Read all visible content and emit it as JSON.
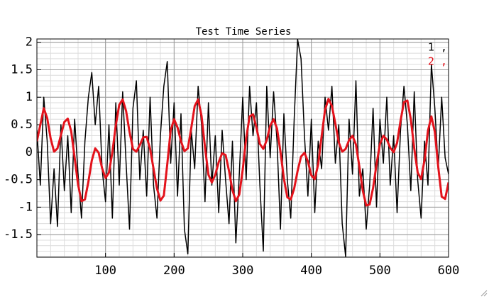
{
  "chart_data": {
    "type": "line",
    "title": "Test Time Series",
    "x": [
      0,
      5,
      10,
      15,
      20,
      25,
      30,
      35,
      40,
      45,
      50,
      55,
      60,
      65,
      70,
      75,
      80,
      85,
      90,
      95,
      100,
      105,
      110,
      115,
      120,
      125,
      130,
      135,
      140,
      145,
      150,
      155,
      160,
      165,
      170,
      175,
      180,
      185,
      190,
      195,
      200,
      205,
      210,
      215,
      220,
      225,
      230,
      235,
      240,
      245,
      250,
      255,
      260,
      265,
      270,
      275,
      280,
      285,
      290,
      295,
      300,
      305,
      310,
      315,
      320,
      325,
      330,
      335,
      340,
      345,
      350,
      355,
      360,
      365,
      370,
      375,
      380,
      385,
      390,
      395,
      400,
      405,
      410,
      415,
      420,
      425,
      430,
      435,
      440,
      445,
      450,
      455,
      460,
      465,
      470,
      475,
      480,
      485,
      490,
      495,
      500,
      505,
      510,
      515,
      520,
      525,
      530,
      535,
      540,
      545,
      550,
      555,
      560,
      565,
      570,
      575,
      580,
      585,
      590,
      595,
      600
    ],
    "series": [
      {
        "name": "1 ,",
        "color": "#000000",
        "values": [
          0.4,
          -0.6,
          1.0,
          0.2,
          -1.3,
          -0.3,
          -1.35,
          0.5,
          -0.7,
          0.3,
          -1.1,
          0.6,
          -0.4,
          -1.2,
          0.2,
          1.0,
          1.45,
          0.5,
          1.2,
          -0.3,
          -0.9,
          0.5,
          -1.2,
          0.9,
          -0.6,
          1.1,
          -0.2,
          -1.4,
          0.8,
          1.3,
          -0.5,
          0.4,
          -0.8,
          1.0,
          -0.6,
          -1.2,
          0.3,
          1.2,
          1.65,
          -0.2,
          0.9,
          -0.8,
          0.7,
          -1.4,
          -1.85,
          0.4,
          -0.3,
          1.2,
          0.5,
          -0.9,
          0.9,
          -0.6,
          0.3,
          -1.1,
          0.4,
          -0.5,
          -1.3,
          0.2,
          -1.65,
          -0.4,
          1.0,
          -0.5,
          1.2,
          0.3,
          0.9,
          -0.6,
          -1.8,
          1.2,
          -0.1,
          1.1,
          0.2,
          -1.4,
          0.7,
          -0.5,
          -1.2,
          0.6,
          2.05,
          1.7,
          0.3,
          -0.8,
          0.6,
          -1.1,
          0.2,
          -0.3,
          1.0,
          0.4,
          1.2,
          -0.2,
          0.5,
          -1.3,
          -1.9,
          0.6,
          -0.4,
          1.3,
          -0.8,
          -0.3,
          -1.4,
          -0.6,
          0.8,
          -1.0,
          0.6,
          -0.2,
          1.0,
          -0.6,
          0.3,
          -1.1,
          0.4,
          1.2,
          0.5,
          -0.7,
          1.1,
          -0.5,
          -1.2,
          0.2,
          -0.6,
          1.6,
          0.8,
          -0.3,
          1.0,
          -0.1,
          -0.4
        ]
      },
      {
        "name": "2 ,",
        "color": "#e3121b",
        "values": [
          0.2,
          0.5,
          0.8,
          0.62,
          0.25,
          0.01,
          0.07,
          0.31,
          0.55,
          0.61,
          0.38,
          -0.1,
          -0.59,
          -0.89,
          -0.86,
          -0.54,
          -0.15,
          0.07,
          -0.01,
          -0.29,
          -0.47,
          -0.37,
          0.0,
          0.49,
          0.86,
          0.96,
          0.75,
          0.37,
          0.06,
          0.01,
          0.13,
          0.27,
          0.28,
          0.06,
          -0.3,
          -0.66,
          -0.88,
          -0.79,
          -0.22,
          0.4,
          0.6,
          0.45,
          0.2,
          0.02,
          0.07,
          0.44,
          0.84,
          0.96,
          0.66,
          0.09,
          -0.41,
          -0.55,
          -0.41,
          -0.18,
          -0.02,
          -0.05,
          -0.34,
          -0.69,
          -0.89,
          -0.77,
          -0.32,
          0.25,
          0.65,
          0.69,
          0.45,
          0.15,
          0.06,
          0.22,
          0.48,
          0.6,
          0.43,
          0.01,
          -0.48,
          -0.82,
          -0.86,
          -0.66,
          -0.34,
          -0.08,
          -0.01,
          -0.17,
          -0.42,
          -0.49,
          -0.22,
          0.29,
          0.77,
          0.97,
          0.84,
          0.52,
          0.18,
          0.01,
          0.06,
          0.22,
          0.3,
          0.14,
          -0.26,
          -0.7,
          -0.97,
          -0.95,
          -0.65,
          -0.22,
          0.15,
          0.3,
          0.23,
          0.08,
          0.0,
          0.17,
          0.57,
          0.91,
          0.94,
          0.6,
          0.07,
          -0.37,
          -0.49,
          -0.14,
          0.39,
          0.65,
          0.37,
          -0.27,
          -0.81,
          -0.85,
          -0.55
        ]
      }
    ],
    "xlim": [
      0,
      600
    ],
    "xticks": [
      100,
      200,
      300,
      400,
      500,
      600
    ],
    "ylim": [
      -1.91,
      2.06
    ],
    "yticks": [
      -1.5,
      -1,
      -0.5,
      0,
      0.5,
      1,
      1.5,
      2
    ],
    "grid": true,
    "minor_grid": true,
    "legend": "top-right"
  }
}
